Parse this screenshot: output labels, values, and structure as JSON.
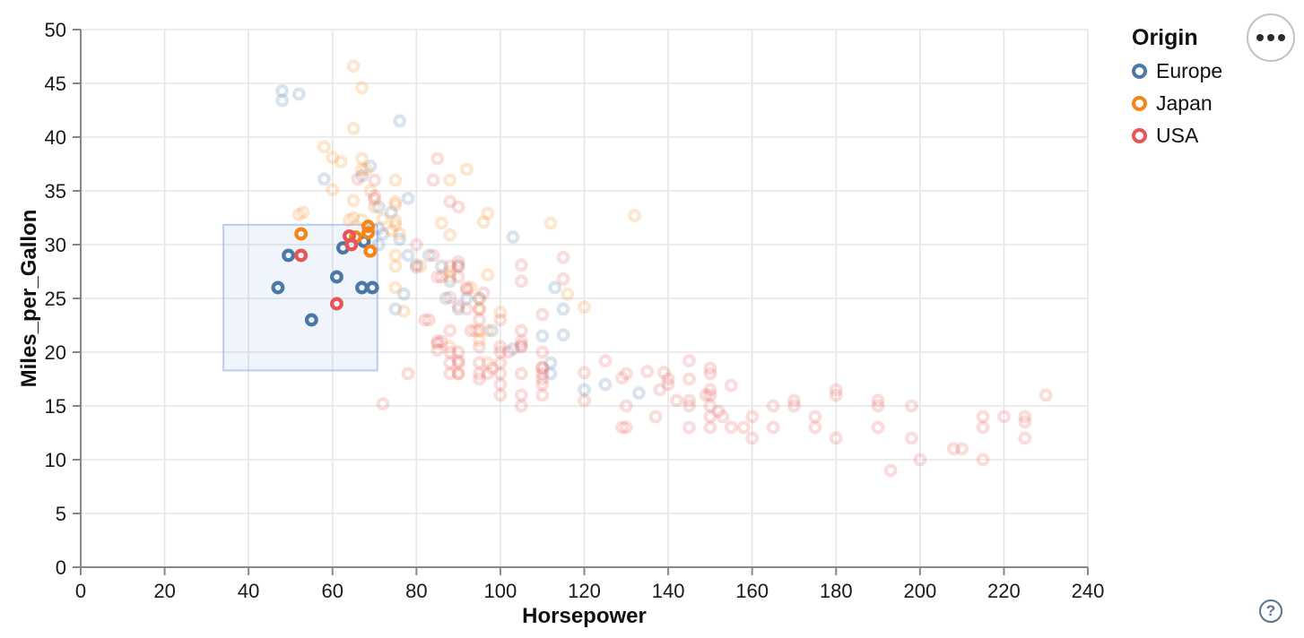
{
  "legend": {
    "title": "Origin",
    "entries": [
      {
        "label": "Europe",
        "color": "#4c78a8"
      },
      {
        "label": "Japan",
        "color": "#f58518"
      },
      {
        "label": "USA",
        "color": "#e45756"
      }
    ]
  },
  "controls": {
    "menu_icon": "ellipsis-icon",
    "help_label": "?"
  },
  "style": {
    "grid_color": "#e6e6e6",
    "axis_color": "#888888",
    "label_color": "#191919",
    "brush_fill": "rgba(130,165,225,0.12)",
    "brush_stroke": "rgba(140,170,225,0.55)",
    "unselected_opacity": 0.2,
    "point_radius": 5.3,
    "point_stroke_width": 4.3
  },
  "chart_data": {
    "type": "scatter",
    "title": "",
    "xlabel": "Horsepower",
    "ylabel": "Miles_per_Gallon",
    "xlim": [
      0,
      240
    ],
    "ylim": [
      0,
      50
    ],
    "x_ticks": [
      0,
      20,
      40,
      60,
      80,
      100,
      120,
      140,
      160,
      180,
      200,
      220,
      240
    ],
    "x_tick_labels": [
      "0",
      "20",
      "40",
      "60",
      "80",
      "100",
      "120",
      "140",
      "160",
      "180",
      "200",
      "220",
      "240"
    ],
    "y_ticks": [
      0,
      5,
      10,
      15,
      20,
      25,
      30,
      35,
      40,
      45,
      50
    ],
    "y_tick_labels": [
      "0",
      "5",
      "10",
      "15",
      "20",
      "25",
      "30",
      "35",
      "40",
      "45",
      "50"
    ],
    "grid": true,
    "legend_position": "top-right",
    "brush_selection": {
      "x": [
        34,
        70.7
      ],
      "y": [
        18.3,
        31.85
      ]
    },
    "series": [
      {
        "name": "Europe",
        "color": "#4c78a8",
        "selected": [
          [
            47,
            26
          ],
          [
            49.5,
            29
          ],
          [
            55,
            23
          ],
          [
            61,
            27
          ],
          [
            62.5,
            29.7
          ],
          [
            67.5,
            30.3
          ],
          [
            67,
            26
          ],
          [
            69.5,
            26
          ]
        ],
        "unselected": [
          [
            48,
            44.3
          ],
          [
            52,
            44
          ],
          [
            48,
            43.4
          ],
          [
            76,
            41.5
          ],
          [
            69,
            37.3
          ],
          [
            67,
            36.4
          ],
          [
            58,
            36.1
          ],
          [
            78,
            34.3
          ],
          [
            74,
            33
          ],
          [
            71,
            33.5
          ],
          [
            71,
            31.5
          ],
          [
            72,
            31
          ],
          [
            103,
            30.7
          ],
          [
            71,
            30
          ],
          [
            76,
            30.5
          ],
          [
            78,
            29
          ],
          [
            83,
            29
          ],
          [
            90,
            28
          ],
          [
            80,
            28.1
          ],
          [
            86,
            28
          ],
          [
            88,
            26.6
          ],
          [
            87,
            25
          ],
          [
            95,
            25
          ],
          [
            92,
            25
          ],
          [
            113,
            26
          ],
          [
            90,
            24
          ],
          [
            75,
            24
          ],
          [
            115,
            24
          ],
          [
            77,
            25.4
          ],
          [
            98,
            22
          ],
          [
            110,
            21.5
          ],
          [
            115,
            21.6
          ],
          [
            103,
            20.3
          ],
          [
            112,
            19
          ],
          [
            112,
            18
          ],
          [
            120,
            16.5
          ],
          [
            133,
            16.2
          ],
          [
            125,
            17
          ]
        ]
      },
      {
        "name": "Japan",
        "color": "#f58518",
        "selected": [
          [
            52.5,
            31
          ],
          [
            65.5,
            30.7
          ],
          [
            68.5,
            31.7
          ],
          [
            68.5,
            31.1
          ],
          [
            69,
            29.4
          ]
        ],
        "unselected": [
          [
            65,
            46.6
          ],
          [
            67,
            44.6
          ],
          [
            65,
            40.8
          ],
          [
            58,
            39.1
          ],
          [
            60,
            38.1
          ],
          [
            67,
            38
          ],
          [
            67,
            37
          ],
          [
            68,
            37
          ],
          [
            92,
            37
          ],
          [
            75,
            36
          ],
          [
            88,
            36
          ],
          [
            60,
            35.1
          ],
          [
            70,
            33.5
          ],
          [
            65,
            34.1
          ],
          [
            75,
            33.7
          ],
          [
            74,
            31.3
          ],
          [
            75,
            31.8
          ],
          [
            53,
            33
          ],
          [
            72,
            32.4
          ],
          [
            75,
            32.2
          ],
          [
            86,
            32
          ],
          [
            112,
            32
          ],
          [
            132,
            32.7
          ],
          [
            97,
            32.9
          ],
          [
            96,
            32.1
          ],
          [
            64,
            32.3
          ],
          [
            69,
            35
          ],
          [
            65,
            32.5
          ],
          [
            95,
            24
          ],
          [
            88,
            27
          ],
          [
            88,
            27.5
          ],
          [
            95,
            25
          ],
          [
            76,
            31
          ],
          [
            97,
            27.2
          ],
          [
            97,
            19
          ],
          [
            94,
            22
          ],
          [
            88,
            20.5
          ],
          [
            75,
            29
          ],
          [
            75,
            28
          ],
          [
            90,
            18
          ],
          [
            93,
            26
          ],
          [
            75,
            26
          ],
          [
            52,
            32.8
          ],
          [
            97,
            22
          ],
          [
            95,
            21.1
          ],
          [
            116,
            25.4
          ],
          [
            120,
            24.2
          ],
          [
            100,
            23.7
          ],
          [
            75,
            34
          ],
          [
            62,
            37.7
          ],
          [
            67,
            32.3
          ],
          [
            88,
            30.9
          ],
          [
            77,
            23.8
          ],
          [
            81,
            28
          ]
        ]
      },
      {
        "name": "USA",
        "color": "#e45756",
        "selected": [
          [
            52.5,
            29
          ],
          [
            61,
            24.5
          ],
          [
            64,
            30.8
          ],
          [
            64.5,
            30
          ]
        ],
        "unselected": [
          [
            130,
            18
          ],
          [
            165,
            15
          ],
          [
            150,
            18
          ],
          [
            150,
            16
          ],
          [
            140,
            17
          ],
          [
            198,
            15
          ],
          [
            220,
            14
          ],
          [
            215,
            14
          ],
          [
            225,
            14
          ],
          [
            190,
            15
          ],
          [
            170,
            15
          ],
          [
            160,
            14
          ],
          [
            150,
            15
          ],
          [
            225,
            13.5
          ],
          [
            165,
            13
          ],
          [
            175,
            13
          ],
          [
            153,
            14
          ],
          [
            150,
            14
          ],
          [
            180,
            12
          ],
          [
            208,
            11
          ],
          [
            155,
            13
          ],
          [
            160,
            12
          ],
          [
            190,
            13
          ],
          [
            145,
            13
          ],
          [
            158,
            13
          ],
          [
            215,
            13
          ],
          [
            225,
            12
          ],
          [
            175,
            14
          ],
          [
            137,
            14
          ],
          [
            150,
            13
          ],
          [
            145,
            15
          ],
          [
            140,
            17.5
          ],
          [
            152,
            14.5
          ],
          [
            198,
            12
          ],
          [
            230,
            16
          ],
          [
            129,
            13
          ],
          [
            120,
            15.5
          ],
          [
            150,
            16.5
          ],
          [
            180,
            16.5
          ],
          [
            130,
            13
          ],
          [
            145,
            17.5
          ],
          [
            130,
            15
          ],
          [
            145,
            15.5
          ],
          [
            180,
            16
          ],
          [
            170,
            15.5
          ],
          [
            190,
            15.5
          ],
          [
            149,
            16
          ],
          [
            129,
            17.6
          ],
          [
            138,
            16.5
          ],
          [
            135,
            18.2
          ],
          [
            155,
            16.9
          ],
          [
            142,
            15.5
          ],
          [
            125,
            19.2
          ],
          [
            150,
            18.5
          ],
          [
            139,
            18.1
          ],
          [
            120,
            18.1
          ],
          [
            145,
            19.2
          ],
          [
            215,
            10
          ],
          [
            200,
            10
          ],
          [
            210,
            11
          ],
          [
            193,
            9
          ],
          [
            95,
            24
          ],
          [
            95,
            22
          ],
          [
            97,
            18
          ],
          [
            85,
            21
          ],
          [
            88,
            18
          ],
          [
            90,
            19
          ],
          [
            90,
            20
          ],
          [
            110,
            18
          ],
          [
            90,
            28
          ],
          [
            86,
            21
          ],
          [
            100,
            18
          ],
          [
            105,
            22
          ],
          [
            100,
            16
          ],
          [
            88,
            19
          ],
          [
            95,
            23
          ],
          [
            105,
            18
          ],
          [
            95,
            18
          ],
          [
            100,
            20
          ],
          [
            110,
            20
          ],
          [
            83,
            23
          ],
          [
            95,
            17.5
          ],
          [
            105,
            16
          ],
          [
            110,
            16
          ],
          [
            105,
            15
          ],
          [
            78,
            18
          ],
          [
            110,
            18.5
          ],
          [
            80,
            30
          ],
          [
            96,
            25.5
          ],
          [
            110,
            17
          ],
          [
            110,
            17.5
          ],
          [
            105,
            20.5
          ],
          [
            100,
            19
          ],
          [
            98,
            18.5
          ],
          [
            90,
            19.2
          ],
          [
            95,
            20.5
          ],
          [
            85,
            20.2
          ],
          [
            88,
            25.1
          ],
          [
            100,
            20.5
          ],
          [
            90,
            24.3
          ],
          [
            105,
            20.6
          ],
          [
            85,
            20.8
          ],
          [
            110,
            18.6
          ],
          [
            80,
            27.9
          ],
          [
            70,
            34.2
          ],
          [
            70,
            34.5
          ],
          [
            115,
            28.8
          ],
          [
            90,
            28.4
          ],
          [
            110,
            23.5
          ],
          [
            115,
            26.8
          ],
          [
            90,
            33.5
          ],
          [
            88,
            28
          ],
          [
            85,
            27
          ],
          [
            84,
            29
          ],
          [
            90,
            27
          ],
          [
            92,
            24
          ],
          [
            82,
            23
          ],
          [
            92,
            25.8
          ],
          [
            86,
            27
          ],
          [
            92,
            26
          ],
          [
            88,
            22
          ],
          [
            84,
            36
          ],
          [
            70,
            36
          ],
          [
            85,
            38
          ],
          [
            88,
            34
          ],
          [
            105,
            26.6
          ],
          [
            66,
            36.1
          ],
          [
            72,
            15.2
          ],
          [
            100,
            17
          ],
          [
            105,
            21
          ],
          [
            100,
            23
          ],
          [
            88,
            20
          ],
          [
            90,
            18
          ],
          [
            95,
            19
          ],
          [
            93,
            22
          ],
          [
            102,
            20
          ],
          [
            105,
            28.1
          ]
        ]
      }
    ]
  }
}
